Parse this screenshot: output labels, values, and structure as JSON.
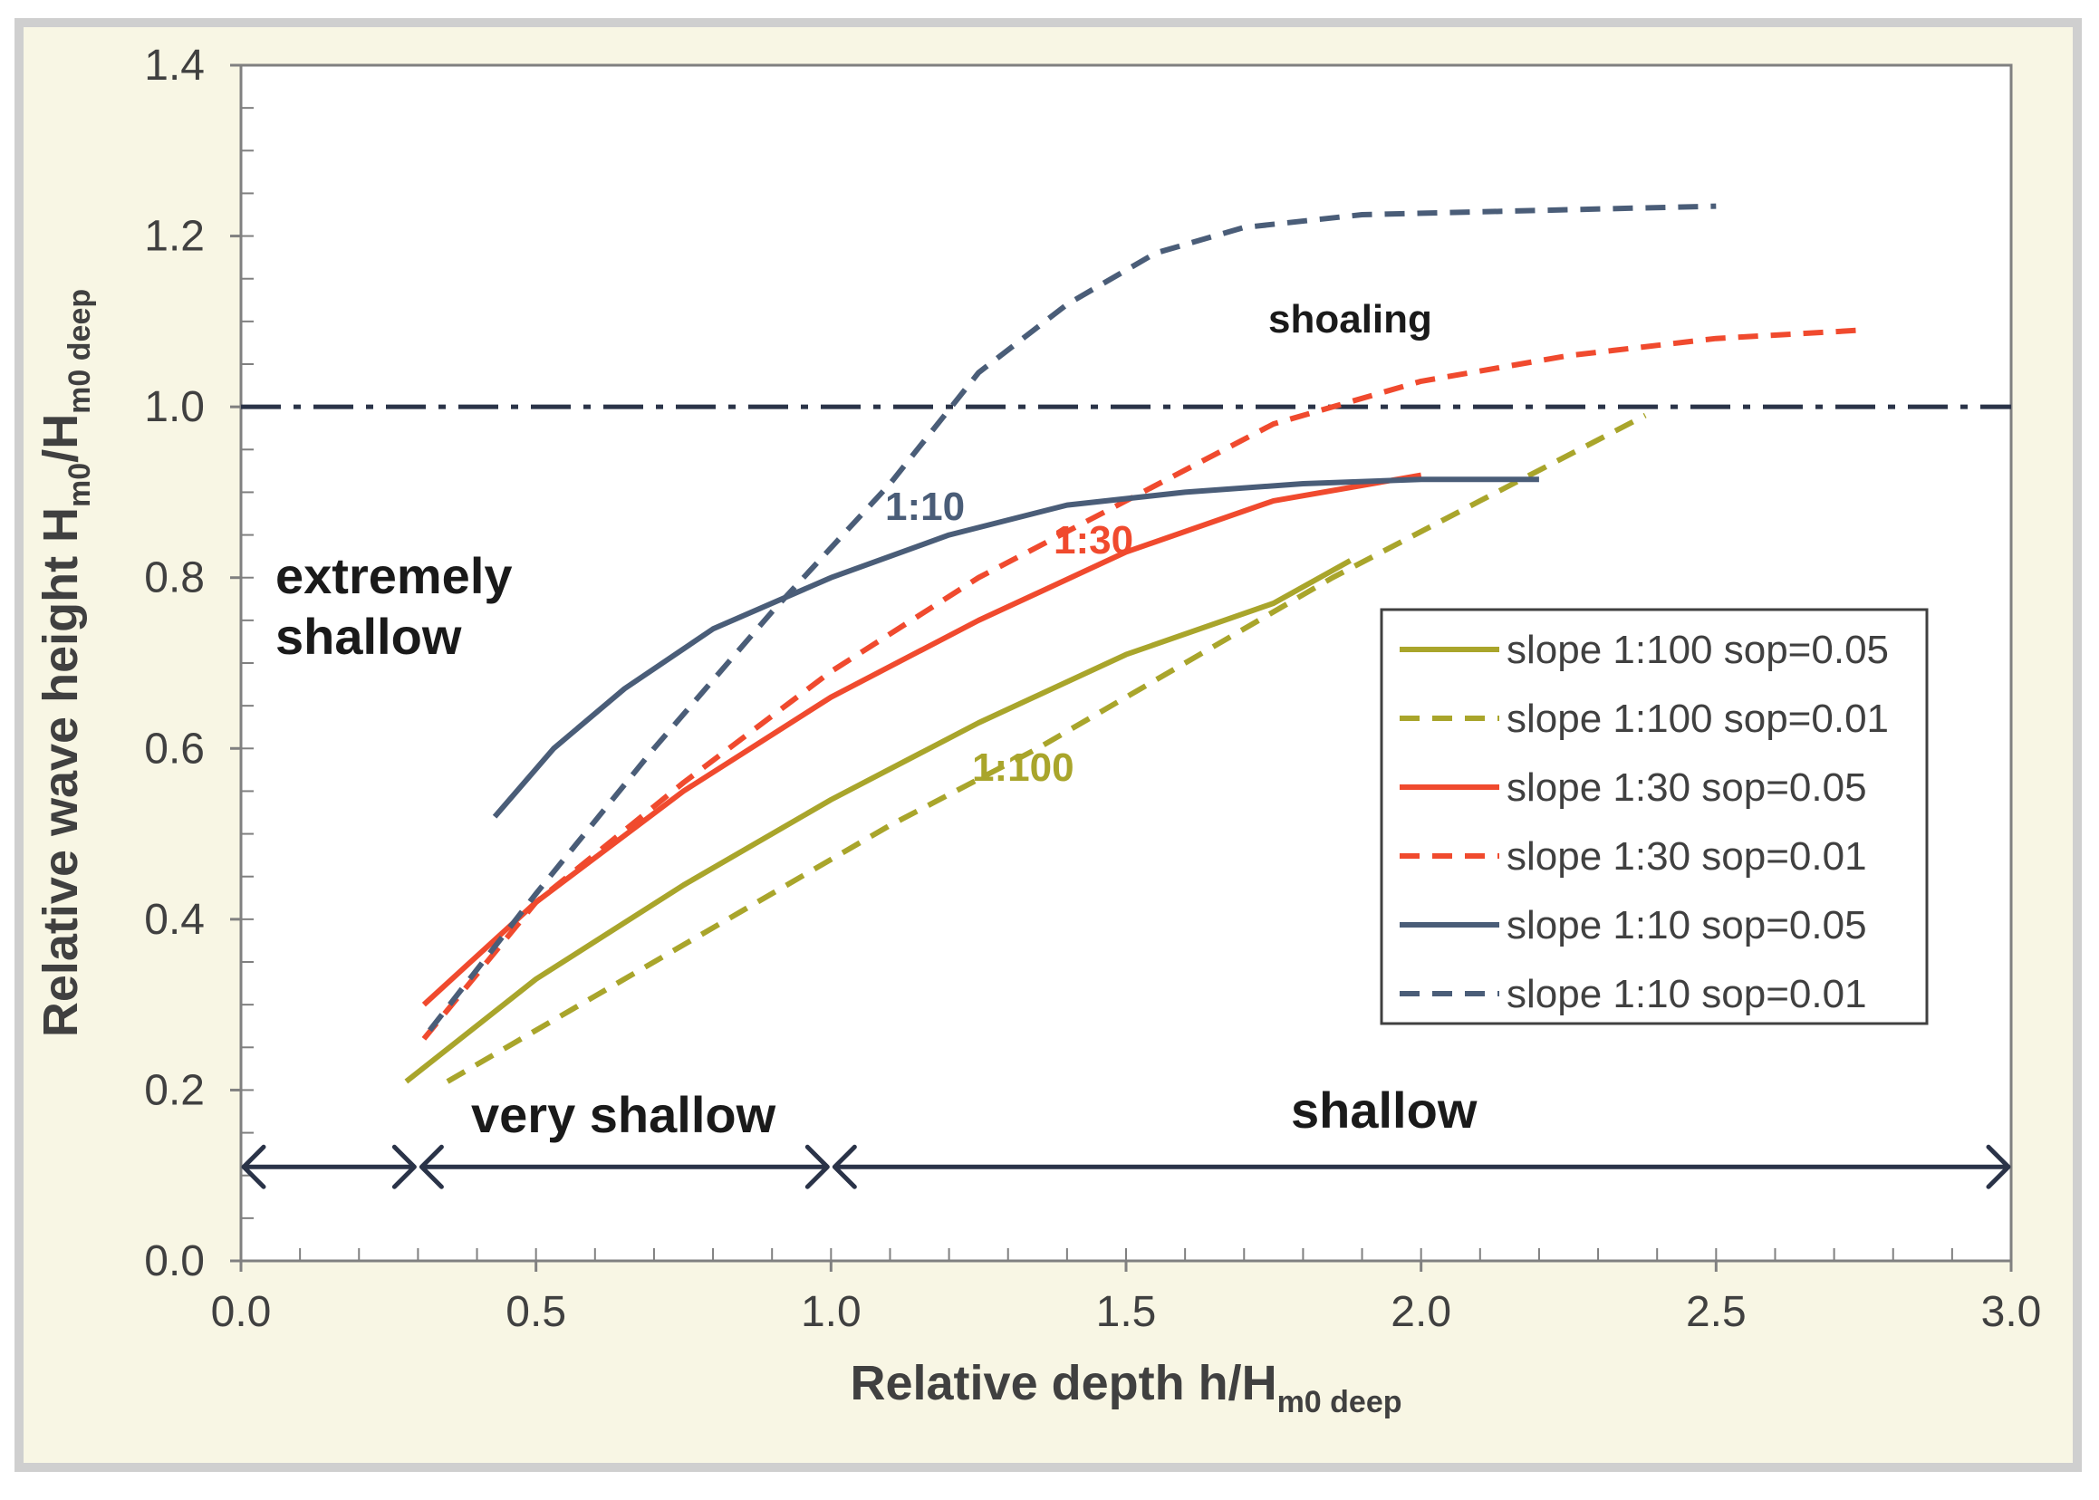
{
  "colors": {
    "background": "#f8f6e4",
    "border": "#cfcfcf",
    "olive": "#a9a52b",
    "red": "#f04a2e",
    "blue": "#4a5d78",
    "navy": "#2a3348",
    "black": "#1a1a1a"
  },
  "chart_data": {
    "type": "line",
    "xlabel": {
      "main": "Relative depth h/H",
      "sub": "m0 deep"
    },
    "ylabel": {
      "main": "Relative wave height H",
      "sub1": "m0",
      "mid": "/H",
      "sub2": "m0 deep"
    },
    "xlim": [
      0.0,
      3.0
    ],
    "ylim": [
      0.0,
      1.4
    ],
    "x_ticks": [
      "0.0",
      "0.5",
      "1.0",
      "1.5",
      "2.0",
      "2.5",
      "3.0"
    ],
    "y_ticks": [
      "0.0",
      "0.2",
      "0.4",
      "0.6",
      "0.8",
      "1.0",
      "1.2",
      "1.4"
    ],
    "reference_line": {
      "y": 1.0,
      "style": "dash-dot"
    },
    "series": [
      {
        "name": "slope 1:100 sop=0.05",
        "color": "olive",
        "dashed": false,
        "x": [
          0.28,
          0.5,
          0.75,
          1.0,
          1.25,
          1.5,
          1.75,
          1.88
        ],
        "y": [
          0.21,
          0.33,
          0.44,
          0.54,
          0.63,
          0.71,
          0.77,
          0.82
        ]
      },
      {
        "name": "slope 1:100 sop=0.01",
        "color": "olive",
        "dashed": true,
        "x": [
          0.35,
          0.6,
          0.85,
          1.1,
          1.35,
          1.6,
          1.85,
          2.1,
          2.38
        ],
        "y": [
          0.21,
          0.31,
          0.41,
          0.51,
          0.6,
          0.7,
          0.8,
          0.89,
          0.99
        ]
      },
      {
        "name": "slope 1:30 sop=0.05",
        "color": "red",
        "dashed": false,
        "x": [
          0.31,
          0.5,
          0.75,
          1.0,
          1.25,
          1.5,
          1.75,
          2.0
        ],
        "y": [
          0.3,
          0.42,
          0.55,
          0.66,
          0.75,
          0.83,
          0.89,
          0.92
        ]
      },
      {
        "name": "slope 1:30 sop=0.01",
        "color": "red",
        "dashed": true,
        "x": [
          0.31,
          0.5,
          0.75,
          1.0,
          1.25,
          1.5,
          1.75,
          2.0,
          2.25,
          2.5,
          2.75
        ],
        "y": [
          0.26,
          0.42,
          0.56,
          0.69,
          0.8,
          0.89,
          0.98,
          1.03,
          1.06,
          1.08,
          1.09
        ]
      },
      {
        "name": "slope 1:10 sop=0.05",
        "color": "blue",
        "dashed": false,
        "x": [
          0.43,
          0.53,
          0.65,
          0.8,
          1.0,
          1.2,
          1.4,
          1.6,
          1.8,
          2.0,
          2.2
        ],
        "y": [
          0.52,
          0.6,
          0.67,
          0.74,
          0.8,
          0.85,
          0.885,
          0.9,
          0.91,
          0.915,
          0.915
        ]
      },
      {
        "name": "slope 1:10 sop=0.01",
        "color": "blue",
        "dashed": true,
        "x": [
          0.32,
          0.5,
          0.7,
          0.9,
          1.1,
          1.25,
          1.4,
          1.55,
          1.7,
          1.9,
          2.2,
          2.5
        ],
        "y": [
          0.27,
          0.43,
          0.6,
          0.76,
          0.91,
          1.04,
          1.12,
          1.18,
          1.21,
          1.225,
          1.23,
          1.235
        ]
      }
    ],
    "annotations": {
      "shoaling": "shoaling",
      "extremely": "extremely",
      "shallow_line": "shallow",
      "very_shallow": "very shallow",
      "shallow": "shallow",
      "label_1_10": "1:10",
      "label_1_30": "1:30",
      "label_1_100": "1:100"
    },
    "ranges": [
      {
        "name": "extremely shallow",
        "from": 0.0,
        "to": 0.3
      },
      {
        "name": "very shallow",
        "from": 0.3,
        "to": 1.0
      },
      {
        "name": "shallow",
        "from": 1.0,
        "to": 3.0
      }
    ],
    "range_arrow_y": 0.11,
    "legend_position": "lower-right"
  }
}
